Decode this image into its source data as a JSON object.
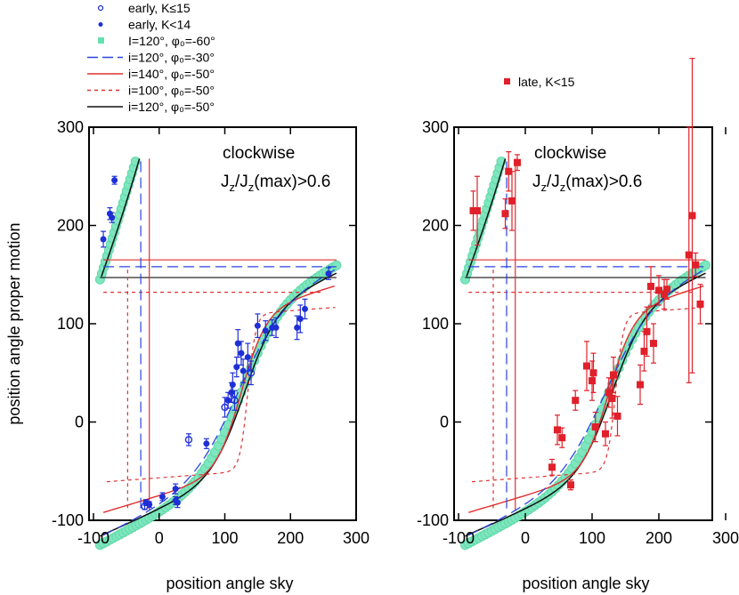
{
  "chart_data": [
    {
      "type": "scatter",
      "panel": "left",
      "xlabel": "position angle sky",
      "ylabel": "position angle proper motion",
      "xlim": [
        -100,
        300
      ],
      "ylim": [
        -100,
        300
      ],
      "xticks": [
        "-100",
        "0",
        "100",
        "200",
        "300"
      ],
      "yticks": [
        "-100",
        "0",
        "100",
        "200",
        "300"
      ],
      "annotation_line1": "clockwise",
      "annotation_line2_prefix": "J",
      "annotation_line2_sub1": "z",
      "annotation_line2_mid": "/J",
      "annotation_line2_sub2": "z",
      "annotation_line2_suffix": "(max)>0.6",
      "legend": [
        {
          "label": "early, K≤15",
          "marker": "open-circle",
          "color": "#1f2fd6"
        },
        {
          "label": "early, K<14",
          "marker": "filled-circle",
          "color": "#1f2fd6"
        },
        {
          "label": "I=120°, φ₀=-60°",
          "marker": "band",
          "color": "#66e0b0"
        },
        {
          "label": "i=120°, φ₀=-30°",
          "marker": "long-dash",
          "color": "#2a44e0"
        },
        {
          "label": "i=140°, φ₀=-50°",
          "marker": "solid",
          "color": "#e03030"
        },
        {
          "label": "i=100°, φ₀=-50°",
          "marker": "short-dash",
          "color": "#e03030"
        },
        {
          "label": "i=120°, φ₀=-50°",
          "marker": "solid",
          "color": "#111111"
        }
      ],
      "series": [
        {
          "name": "early, K<14",
          "marker": "filled-circle",
          "color": "#1f2fd6",
          "points": [
            [
              -85,
              186,
              8
            ],
            [
              -75,
              212,
              6
            ],
            [
              -72,
              208,
              5
            ],
            [
              -68,
              246,
              4
            ],
            [
              -20,
              -82,
              3
            ],
            [
              -15,
              -84,
              3
            ],
            [
              5,
              -76,
              4
            ],
            [
              25,
              -68,
              5
            ],
            [
              25,
              -80,
              4
            ],
            [
              28,
              -82,
              5
            ],
            [
              72,
              -22,
              5
            ],
            [
              105,
              22,
              8
            ],
            [
              110,
              30,
              10
            ],
            [
              112,
              38,
              12
            ],
            [
              118,
              56,
              10
            ],
            [
              120,
              80,
              14
            ],
            [
              125,
              70,
              12
            ],
            [
              128,
              52,
              12
            ],
            [
              135,
              66,
              14
            ],
            [
              150,
              98,
              12
            ],
            [
              162,
              93,
              10
            ],
            [
              172,
              96,
              8
            ],
            [
              178,
              96,
              10
            ],
            [
              210,
              96,
              12
            ],
            [
              215,
              105,
              14
            ],
            [
              222,
              115,
              10
            ],
            [
              258,
              151,
              6
            ]
          ]
        },
        {
          "name": "early, K≤15",
          "marker": "open-circle",
          "color": "#1f2fd6",
          "points": [
            [
              -22,
              -86,
              3
            ],
            [
              45,
              -18,
              6
            ],
            [
              100,
              15,
              10
            ],
            [
              115,
              22,
              10
            ],
            [
              140,
              50,
              12
            ]
          ]
        }
      ],
      "model_curves": [
        {
          "label": "I=120°, φ₀=-60°",
          "style": "band"
        },
        {
          "label": "i=120°, φ₀=-30°",
          "style": "long-dash"
        },
        {
          "label": "i=140°, φ₀=-50°",
          "style": "solid-red"
        },
        {
          "label": "i=100°, φ₀=-50°",
          "style": "short-dash"
        },
        {
          "label": "i=120°, φ₀=-50°",
          "style": "solid-black"
        }
      ]
    },
    {
      "type": "scatter",
      "panel": "right",
      "xlabel": "position angle sky",
      "xlim": [
        -100,
        300
      ],
      "ylim": [
        -100,
        300
      ],
      "xticks": [
        "-100",
        "0",
        "100",
        "200",
        "300"
      ],
      "yticks": [
        "-100",
        "0",
        "100",
        "200",
        "300"
      ],
      "annotation_line1": "clockwise",
      "annotation_line2_prefix": "J",
      "annotation_line2_sub1": "z",
      "annotation_line2_mid": "/J",
      "annotation_line2_sub2": "z",
      "annotation_line2_suffix": "(max)>0.6",
      "legend": [
        {
          "label": "late, K<15",
          "marker": "filled-square",
          "color": "#e0202a"
        }
      ],
      "series": [
        {
          "name": "late, K<15",
          "marker": "filled-square",
          "color": "#e0202a",
          "points": [
            [
              -78,
              215,
              20
            ],
            [
              -72,
              215,
              35
            ],
            [
              -30,
              212,
              15
            ],
            [
              -25,
              255,
              20
            ],
            [
              -20,
              225,
              30
            ],
            [
              -12,
              264,
              8
            ],
            [
              40,
              -46,
              8
            ],
            [
              48,
              -8,
              15
            ],
            [
              55,
              -16,
              10
            ],
            [
              68,
              -64,
              5
            ],
            [
              75,
              22,
              10
            ],
            [
              92,
              57,
              25
            ],
            [
              100,
              42,
              20
            ],
            [
              102,
              50,
              20
            ],
            [
              105,
              -5,
              15
            ],
            [
              120,
              -12,
              12
            ],
            [
              125,
              30,
              15
            ],
            [
              130,
              24,
              20
            ],
            [
              132,
              48,
              18
            ],
            [
              138,
              6,
              20
            ],
            [
              172,
              38,
              20
            ],
            [
              178,
              72,
              20
            ],
            [
              182,
              92,
              25
            ],
            [
              188,
              138,
              20
            ],
            [
              192,
              80,
              20
            ],
            [
              200,
              134,
              15
            ],
            [
              208,
              130,
              15
            ],
            [
              212,
              135,
              10
            ],
            [
              245,
              170,
              130
            ],
            [
              250,
              210,
              160
            ],
            [
              255,
              160,
              12
            ],
            [
              262,
              120,
              20
            ]
          ]
        }
      ],
      "model_curves": [
        {
          "label": "I=120°, φ₀=-60°",
          "style": "band"
        },
        {
          "label": "i=120°, φ₀=-30°",
          "style": "long-dash"
        },
        {
          "label": "i=140°, φ₀=-50°",
          "style": "solid-red"
        },
        {
          "label": "i=100°, φ₀=-50°",
          "style": "short-dash"
        },
        {
          "label": "i=120°, φ₀=-50°",
          "style": "solid-black"
        }
      ]
    }
  ]
}
